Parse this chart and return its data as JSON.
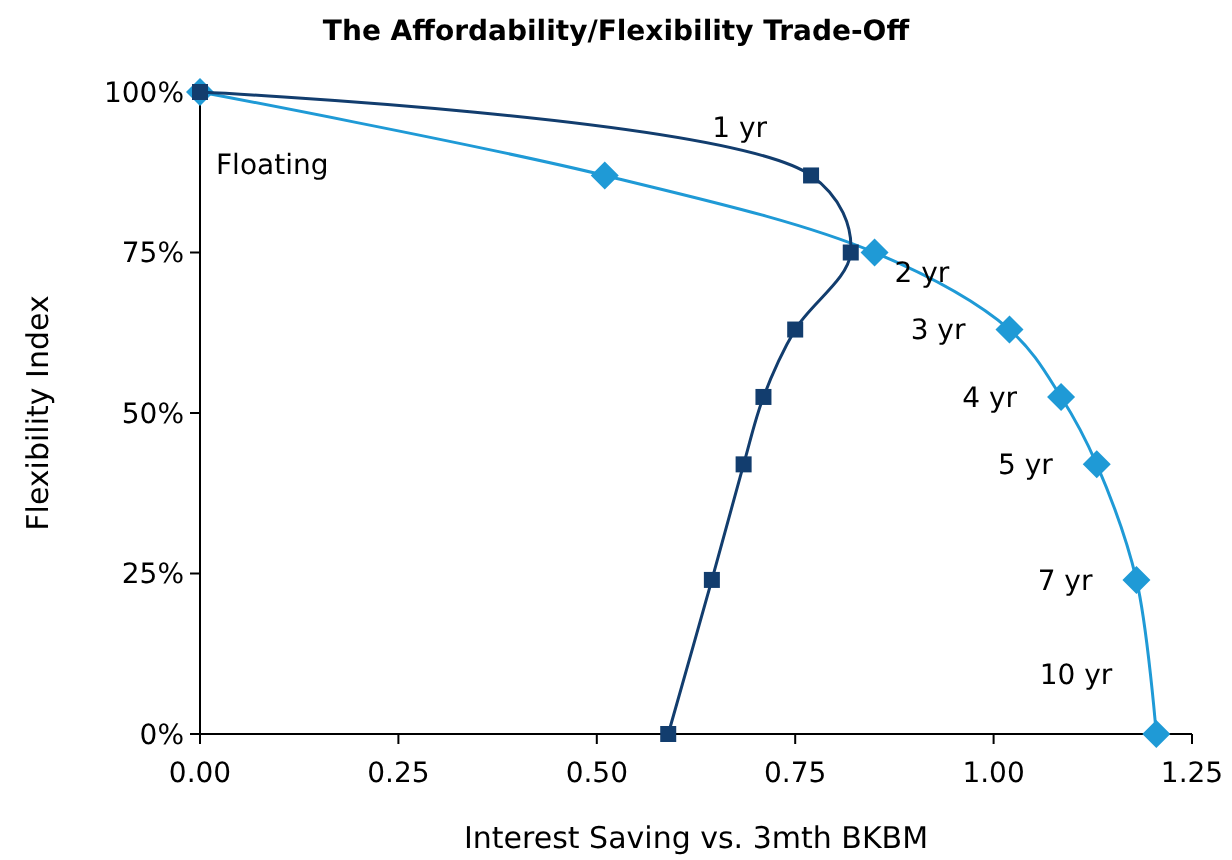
{
  "chart_data": {
    "type": "line",
    "title": "The Affordability/Flexibility Trade-Off",
    "xlabel": "Interest Saving vs. 3mth BKBM",
    "ylabel": "Flexibility Index",
    "xlim": [
      0,
      1.25
    ],
    "xticks": [
      {
        "value": 0,
        "label": "0.00"
      },
      {
        "value": 0.25,
        "label": "0.25"
      },
      {
        "value": 0.5,
        "label": "0.50"
      },
      {
        "value": 0.75,
        "label": "0.75"
      },
      {
        "value": 1,
        "label": "1.00"
      },
      {
        "value": 1.25,
        "label": "1.25"
      }
    ],
    "ylim": [
      0,
      100
    ],
    "yticks": [
      {
        "value": 0,
        "label": "0%"
      },
      {
        "value": 25,
        "label": "25%"
      },
      {
        "value": 50,
        "label": "50%"
      },
      {
        "value": 75,
        "label": "75%"
      },
      {
        "value": 100,
        "label": "100%"
      }
    ],
    "grid": false,
    "series": [
      {
        "color": "#123d6e",
        "marker": "square",
        "x": [
          0,
          0.77,
          0.82,
          0.75,
          0.71,
          0.685,
          0.645,
          0.59
        ],
        "values": [
          100,
          87,
          75,
          63,
          52.5,
          42,
          24,
          0
        ]
      },
      {
        "color": "#1f9ad6",
        "marker": "diamond",
        "x": [
          0,
          0.51,
          0.85,
          1.02,
          1.085,
          1.13,
          1.18,
          1.205
        ],
        "values": [
          100,
          87,
          75,
          63,
          52.5,
          42,
          24,
          0
        ]
      }
    ],
    "annotations": [
      {
        "text": "Floating",
        "x": 0,
        "y": 100
      },
      {
        "text": "1 yr",
        "x": 0.77,
        "y": 87
      },
      {
        "text": "2 yr",
        "x": 0.85,
        "y": 75
      },
      {
        "text": "3 yr",
        "x": 1.02,
        "y": 63
      },
      {
        "text": "4 yr",
        "x": 1.085,
        "y": 52.5
      },
      {
        "text": "5 yr",
        "x": 1.13,
        "y": 42
      },
      {
        "text": "7 yr",
        "x": 1.18,
        "y": 24
      },
      {
        "text": "10 yr",
        "x": 1.205,
        "y": 0
      }
    ]
  }
}
